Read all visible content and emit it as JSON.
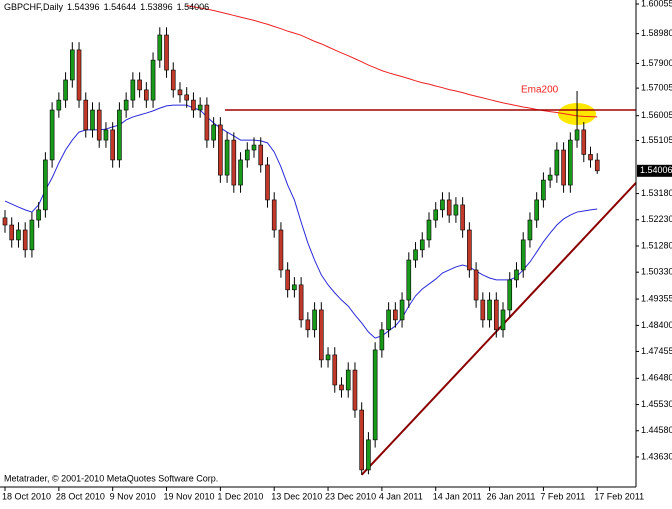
{
  "chart_data": {
    "type": "candlestick",
    "symbol": "GBPCHF,Daily",
    "copyright": "Metatrader, © 2001-2010 MetaQuotes Software Corp.",
    "categories": [
      "18 Oct 2010",
      null,
      null,
      null,
      null,
      null,
      null,
      null,
      "28 Oct 2010",
      null,
      null,
      null,
      null,
      null,
      null,
      null,
      "9 Nov 2010",
      null,
      null,
      null,
      null,
      null,
      null,
      null,
      "19 Nov 2010",
      null,
      null,
      null,
      null,
      null,
      null,
      null,
      "1 Dec 2010",
      null,
      null,
      null,
      null,
      null,
      null,
      null,
      "13 Dec 2010",
      null,
      null,
      null,
      null,
      null,
      null,
      null,
      "23 Dec 2010",
      null,
      null,
      null,
      null,
      null,
      null,
      null,
      "4 Jan 2011",
      null,
      null,
      null,
      null,
      null,
      null,
      null,
      "14 Jan 2011",
      null,
      null,
      null,
      null,
      null,
      null,
      null,
      "26 Jan 2011",
      null,
      null,
      null,
      null,
      null,
      null,
      null,
      "7 Feb 2011",
      null,
      null,
      null,
      null,
      null,
      null,
      null,
      "17 Feb 2011"
    ],
    "open": [
      1.523,
      1.5204,
      1.515,
      1.5186,
      1.5114,
      1.5222,
      1.5259,
      1.544,
      1.5621,
      1.5657,
      1.573,
      1.5839,
      1.5657,
      1.5549,
      1.5621,
      1.5512,
      1.5549,
      1.544,
      1.5621,
      1.5657,
      1.573,
      1.5694,
      1.5657,
      1.5802,
      1.5893,
      1.5766,
      1.5694,
      1.5676,
      1.5657,
      1.5621,
      1.5639,
      1.5512,
      1.5567,
      1.5385,
      1.5512,
      1.5349,
      1.544,
      1.5476,
      1.5494,
      1.5422,
      1.5295,
      1.5186,
      1.5041,
      1.4969,
      1.4987,
      1.486,
      1.4824,
      1.4896,
      1.4715,
      1.4733,
      1.4624,
      1.4606,
      1.4678,
      1.4533,
      1.4316,
      1.4425,
      1.4751,
      1.4824,
      1.4896,
      1.486,
      1.4932,
      1.5077,
      1.5114,
      1.515,
      1.5222,
      1.5259,
      1.5295,
      1.524,
      1.5277,
      1.5186,
      1.5041,
      1.4932,
      1.486,
      1.4932,
      1.4824,
      1.4896,
      1.5005,
      1.5041,
      1.515,
      1.5222,
      1.5295,
      1.5367,
      1.5385,
      1.5476,
      1.5349,
      1.5512,
      1.5549,
      1.546,
      1.54396
    ],
    "high": [
      1.5258,
      1.5232,
      1.5214,
      1.5214,
      1.525,
      1.5287,
      1.5468,
      1.5649,
      1.5685,
      1.5758,
      1.5867,
      1.5867,
      1.5685,
      1.5649,
      1.5649,
      1.5577,
      1.5577,
      1.5649,
      1.5685,
      1.5758,
      1.5758,
      1.5722,
      1.583,
      1.5921,
      1.5921,
      1.5794,
      1.5722,
      1.5704,
      1.5685,
      1.5667,
      1.5667,
      1.5595,
      1.5595,
      1.554,
      1.554,
      1.5468,
      1.5504,
      1.5522,
      1.5522,
      1.545,
      1.5323,
      1.5214,
      1.5069,
      1.5015,
      1.5015,
      1.4888,
      1.4924,
      1.4924,
      1.4761,
      1.4761,
      1.4652,
      1.4706,
      1.4706,
      1.4561,
      1.4453,
      1.4779,
      1.4852,
      1.4924,
      1.4924,
      1.496,
      1.5105,
      1.5142,
      1.5178,
      1.525,
      1.5287,
      1.5323,
      1.5323,
      1.5305,
      1.5305,
      1.5214,
      1.5069,
      1.496,
      1.496,
      1.496,
      1.4924,
      1.5033,
      1.5069,
      1.5178,
      1.525,
      1.5323,
      1.5395,
      1.5413,
      1.5504,
      1.5504,
      1.554,
      1.569,
      1.5577,
      1.5488,
      1.54644
    ],
    "low": [
      1.5176,
      1.5122,
      1.5122,
      1.5086,
      1.5086,
      1.5194,
      1.5231,
      1.5412,
      1.5593,
      1.5629,
      1.5702,
      1.5629,
      1.5521,
      1.5521,
      1.5484,
      1.5484,
      1.5412,
      1.5412,
      1.5593,
      1.5629,
      1.5666,
      1.5629,
      1.5629,
      1.5774,
      1.5738,
      1.5666,
      1.5648,
      1.5629,
      1.5593,
      1.5593,
      1.5484,
      1.5484,
      1.5357,
      1.5357,
      1.5321,
      1.5321,
      1.5412,
      1.5448,
      1.5394,
      1.5267,
      1.5158,
      1.5013,
      1.4941,
      1.4941,
      1.4832,
      1.4796,
      1.4796,
      1.4687,
      1.4687,
      1.4596,
      1.4578,
      1.4578,
      1.4505,
      1.4298,
      1.43,
      1.4397,
      1.4723,
      1.4796,
      1.4832,
      1.4832,
      1.4904,
      1.5049,
      1.5086,
      1.5122,
      1.5194,
      1.5231,
      1.5212,
      1.5212,
      1.5158,
      1.5013,
      1.4904,
      1.4832,
      1.4832,
      1.4796,
      1.4796,
      1.4868,
      1.4977,
      1.5013,
      1.5122,
      1.5194,
      1.5267,
      1.5339,
      1.5357,
      1.5321,
      1.5321,
      1.5484,
      1.5432,
      1.5412,
      1.53896
    ],
    "close": [
      1.5204,
      1.515,
      1.5186,
      1.5114,
      1.5222,
      1.5259,
      1.544,
      1.5621,
      1.5657,
      1.573,
      1.5839,
      1.5657,
      1.5549,
      1.5621,
      1.5512,
      1.5549,
      1.544,
      1.5621,
      1.5657,
      1.573,
      1.5694,
      1.5657,
      1.5802,
      1.5893,
      1.5766,
      1.5694,
      1.5676,
      1.5657,
      1.5621,
      1.5639,
      1.5512,
      1.5567,
      1.5385,
      1.5512,
      1.5349,
      1.544,
      1.5476,
      1.5494,
      1.5422,
      1.5295,
      1.5186,
      1.5041,
      1.4969,
      1.4987,
      1.486,
      1.4824,
      1.4896,
      1.4715,
      1.4733,
      1.4624,
      1.4606,
      1.4678,
      1.4533,
      1.4316,
      1.4425,
      1.4751,
      1.4824,
      1.4896,
      1.486,
      1.4932,
      1.5077,
      1.5114,
      1.515,
      1.5222,
      1.5259,
      1.5295,
      1.524,
      1.5277,
      1.5186,
      1.5041,
      1.4932,
      1.486,
      1.4932,
      1.4824,
      1.4896,
      1.5005,
      1.5041,
      1.515,
      1.5222,
      1.5295,
      1.5367,
      1.5385,
      1.5476,
      1.5349,
      1.5512,
      1.5549,
      1.546,
      1.544,
      1.54006
    ],
    "up_color": "#1a9a1a",
    "down_color": "#c0392b",
    "lines": [
      {
        "color": "#2a2ad8",
        "values": [
          1.5291,
          1.528,
          1.5269,
          1.5259,
          1.5251,
          1.5277,
          1.5331,
          1.5375,
          1.5429,
          1.5476,
          1.5512,
          1.5541,
          1.5549,
          1.5549,
          1.5549,
          1.5552,
          1.556,
          1.5567,
          1.5585,
          1.5596,
          1.5603,
          1.561,
          1.5618,
          1.5628,
          1.5636,
          1.5639,
          1.5639,
          1.5639,
          1.5628,
          1.5621,
          1.5596,
          1.5574,
          1.5556,
          1.5541,
          1.5527,
          1.5512,
          1.5512,
          1.5512,
          1.5509,
          1.5502,
          1.5469,
          1.5415,
          1.5349,
          1.5295,
          1.5215,
          1.5139,
          1.5077,
          1.5023,
          1.4987,
          1.4958,
          1.4932,
          1.491,
          1.4878,
          1.4849,
          1.4816,
          1.4794,
          1.4802,
          1.482,
          1.4838,
          1.4867,
          1.491,
          1.4947,
          1.4972,
          1.499,
          1.5008,
          1.503,
          1.5041,
          1.5052,
          1.5059,
          1.5052,
          1.5037,
          1.5023,
          1.5012,
          1.5005,
          1.5005,
          1.5005,
          1.5016,
          1.5041,
          1.507,
          1.5106,
          1.5143,
          1.5175,
          1.5204,
          1.5226,
          1.524,
          1.5251,
          1.5255,
          1.5259,
          1.5262
        ]
      },
      {
        "color": "#ee2222",
        "label": "Ema200",
        "values": [
          null,
          null,
          null,
          null,
          null,
          null,
          null,
          null,
          null,
          null,
          null,
          null,
          null,
          null,
          null,
          null,
          null,
          null,
          null,
          null,
          null,
          null,
          null,
          null,
          null,
          null,
          null,
          1.6,
          1.5995,
          1.5991,
          1.5987,
          1.5982,
          1.5976,
          1.597,
          1.5964,
          1.5958,
          1.5952,
          1.5946,
          1.5939,
          1.5932,
          1.5924,
          1.5916,
          1.5907,
          1.59,
          1.5892,
          1.5881,
          1.587,
          1.5861,
          1.585,
          1.5839,
          1.5828,
          1.5818,
          1.5807,
          1.5796,
          1.5784,
          1.5774,
          1.5764,
          1.5756,
          1.5749,
          1.5742,
          1.5735,
          1.5727,
          1.572,
          1.5715,
          1.5708,
          1.5702,
          1.5695,
          1.569,
          1.5684,
          1.5677,
          1.5671,
          1.5665,
          1.5659,
          1.5653,
          1.5647,
          1.5642,
          1.5637,
          1.5632,
          1.5628,
          1.5623,
          1.5619,
          1.5615,
          1.5612,
          1.5608,
          1.5604,
          1.56,
          1.5598,
          1.5597,
          1.5596
        ]
      }
    ],
    "level_line": {
      "value": 1.5621,
      "color": "#a00000"
    },
    "trend_line": {
      "end": 1.5357,
      "color": "#8b0000"
    },
    "ylim": [
      1.4254,
      1.602
    ],
    "yticks": [
      1.60055,
      {
        "value": 1.5898,
        "label": "1.58980"
      },
      {
        "value": 1.579,
        "label": "1.57900"
      },
      1.57005,
      1.56005,
      1.55105,
      {
        "value": 1.5318,
        "label": "1.53180"
      },
      {
        "value": 1.5223,
        "label": "1.52230"
      },
      {
        "value": 1.5128,
        "label": "1.51280"
      },
      {
        "value": 1.5033,
        "label": "1.50330"
      },
      1.49355,
      {
        "value": 1.484,
        "label": "1.48400"
      },
      1.47455,
      {
        "value": 1.4648,
        "label": "1.46480"
      },
      {
        "value": 1.4553,
        "label": "1.45530"
      },
      {
        "value": 1.4458,
        "label": "1.44580"
      },
      {
        "value": 1.4363,
        "label": "1.43630"
      }
    ]
  }
}
